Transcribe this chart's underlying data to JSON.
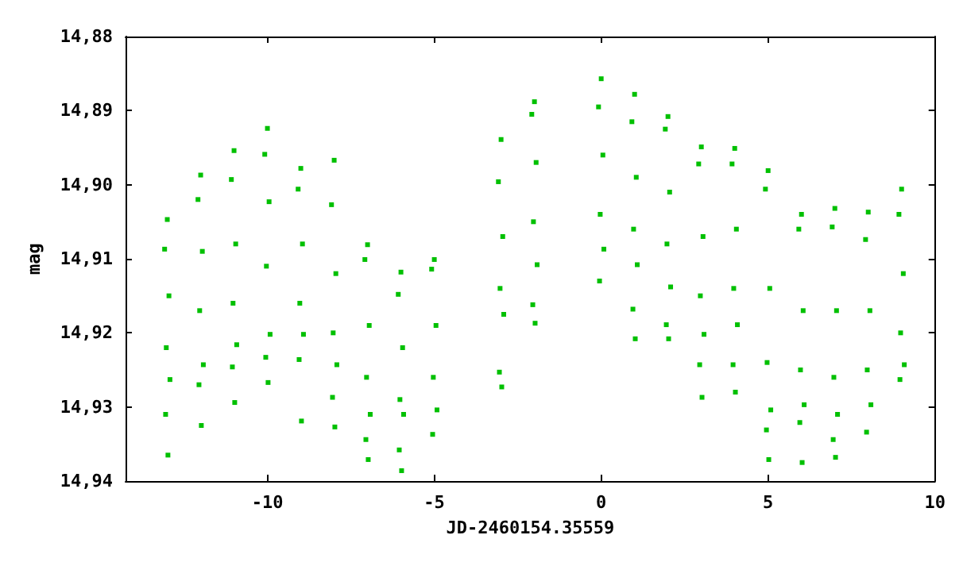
{
  "chart_data": {
    "type": "scatter",
    "xlabel": "JD-2460154.35559",
    "ylabel": "mag",
    "xlim": [
      -14.25,
      10
    ],
    "ylim": [
      14.94,
      14.88
    ],
    "xticks": [
      -10,
      -5,
      0,
      5,
      10
    ],
    "yticks": [
      {
        "value": 14.88,
        "label": "14,88"
      },
      {
        "value": 14.89,
        "label": "14,89"
      },
      {
        "value": 14.9,
        "label": "14,90"
      },
      {
        "value": 14.91,
        "label": "14,91"
      },
      {
        "value": 14.92,
        "label": "14,92"
      },
      {
        "value": 14.93,
        "label": "14,93"
      },
      {
        "value": 14.94,
        "label": "14,94"
      }
    ],
    "grid": false,
    "marker": "square",
    "series": [
      {
        "color": "#00c000",
        "x": [
          -13,
          -13.08,
          -12.95,
          -13.03,
          -12.92,
          -13.05,
          -12.98,
          -12,
          -12.08,
          -11.95,
          -12.03,
          -11.92,
          -12.05,
          -11.98,
          -11,
          -11.08,
          -10.95,
          -11.03,
          -10.92,
          -11.05,
          -10.98,
          -10,
          -10.08,
          -9.95,
          -10.03,
          -9.92,
          -10.05,
          -9.98,
          -9,
          -9.08,
          -8.95,
          -9.03,
          -8.92,
          -9.05,
          -8.98,
          -8,
          -8.08,
          -7.95,
          -8.03,
          -7.92,
          -8.05,
          -7.98,
          -7,
          -7.08,
          -6.95,
          -7.03,
          -6.92,
          -7.05,
          -6.98,
          -6,
          -6.08,
          -5.95,
          -6.03,
          -5.92,
          -6.05,
          -5.98,
          -5,
          -5.08,
          -4.95,
          -5.03,
          -4.92,
          -5.05,
          -3,
          -3.08,
          -2.95,
          -3.03,
          -2.92,
          -3.05,
          -2.98,
          -2,
          -2.08,
          -1.95,
          -2.03,
          -1.92,
          -2.05,
          -1.98,
          0,
          -0.08,
          0.05,
          -0.03,
          0.08,
          -0.05,
          1,
          0.92,
          1.05,
          0.97,
          1.08,
          0.95,
          1.02,
          2,
          1.92,
          2.05,
          1.97,
          2.08,
          1.95,
          2.02,
          3,
          2.92,
          3.05,
          2.97,
          3.08,
          2.95,
          3.02,
          4,
          3.92,
          4.05,
          3.97,
          4.08,
          3.95,
          4.02,
          5,
          4.92,
          5.05,
          4.97,
          5.08,
          4.95,
          5.02,
          6,
          5.92,
          6.05,
          5.97,
          6.08,
          5.95,
          6.02,
          7,
          6.92,
          7.05,
          6.97,
          7.08,
          6.95,
          7.02,
          8,
          7.92,
          8.05,
          7.97,
          8.08,
          7.95,
          9,
          8.92,
          9.05,
          8.97,
          9.08,
          8.95
        ],
        "values": [
          14.9047,
          14.9087,
          14.915,
          14.922,
          14.9263,
          14.931,
          14.9365,
          14.8987,
          14.902,
          14.909,
          14.917,
          14.9243,
          14.927,
          14.9325,
          14.8954,
          14.8993,
          14.908,
          14.916,
          14.9216,
          14.9246,
          14.9294,
          14.8924,
          14.8959,
          14.9023,
          14.911,
          14.9202,
          14.9233,
          14.9267,
          14.8978,
          14.9006,
          14.908,
          14.916,
          14.9202,
          14.9236,
          14.9319,
          14.8967,
          14.9027,
          14.912,
          14.92,
          14.9243,
          14.9287,
          14.9327,
          14.9081,
          14.9101,
          14.919,
          14.926,
          14.931,
          14.9344,
          14.9371,
          14.9118,
          14.9148,
          14.922,
          14.929,
          14.931,
          14.9358,
          14.9386,
          14.9101,
          14.9114,
          14.919,
          14.926,
          14.9304,
          14.9337,
          14.8939,
          14.8996,
          14.907,
          14.914,
          14.9175,
          14.9253,
          14.9273,
          14.8888,
          14.8905,
          14.897,
          14.905,
          14.9108,
          14.9162,
          14.9187,
          14.8857,
          14.8895,
          14.896,
          14.904,
          14.9087,
          14.913,
          14.8878,
          14.8915,
          14.899,
          14.906,
          14.9108,
          14.9168,
          14.9208,
          14.8908,
          14.8925,
          14.901,
          14.908,
          14.9138,
          14.9189,
          14.9208,
          14.8949,
          14.8972,
          14.907,
          14.915,
          14.9202,
          14.9243,
          14.9287,
          14.8951,
          14.8972,
          14.906,
          14.914,
          14.9189,
          14.9243,
          14.928,
          14.8981,
          14.9006,
          14.914,
          14.924,
          14.9304,
          14.9331,
          14.9371,
          14.904,
          14.906,
          14.917,
          14.925,
          14.9297,
          14.9321,
          14.9375,
          14.9032,
          14.9057,
          14.917,
          14.926,
          14.931,
          14.9344,
          14.9368,
          14.9037,
          14.9074,
          14.917,
          14.925,
          14.9297,
          14.9334,
          14.9006,
          14.904,
          14.912,
          14.92,
          14.9243,
          14.9263
        ]
      }
    ]
  }
}
